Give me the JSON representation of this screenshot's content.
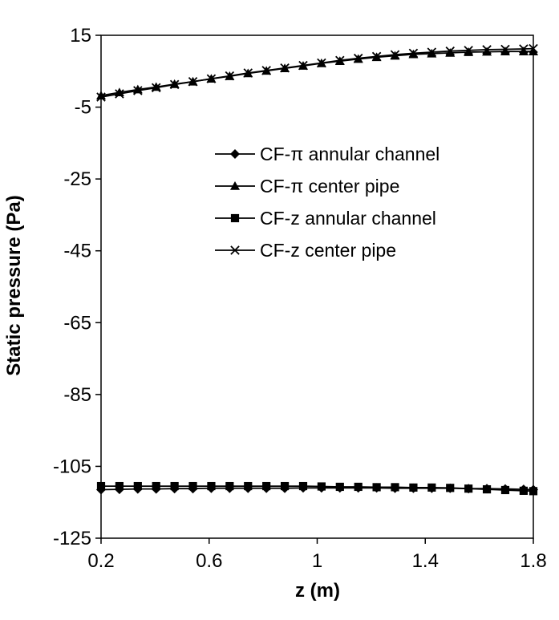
{
  "chart_data": {
    "type": "line",
    "title": "",
    "xlabel": "z (m)",
    "ylabel": "Static pressure (Pa)",
    "xlim": [
      0.2,
      1.8
    ],
    "ylim": [
      -125,
      15
    ],
    "xticks": [
      0.2,
      0.6,
      1,
      1.4,
      1.8
    ],
    "xtick_labels": [
      "0.2",
      "0.6",
      "1",
      "1.4",
      "1.8"
    ],
    "yticks": [
      15,
      -5,
      -25,
      -45,
      -65,
      -85,
      -105,
      -125
    ],
    "ytick_labels": [
      "15",
      "-5",
      "-25",
      "-45",
      "-65",
      "-85",
      "-105",
      "-125"
    ],
    "grid": false,
    "legend_position": "center",
    "x": [
      0.2,
      0.268,
      0.336,
      0.404,
      0.472,
      0.54,
      0.608,
      0.676,
      0.744,
      0.812,
      0.88,
      0.948,
      1.016,
      1.084,
      1.152,
      1.22,
      1.288,
      1.356,
      1.424,
      1.492,
      1.56,
      1.628,
      1.696,
      1.764,
      1.8
    ],
    "series": [
      {
        "name": "CF-π annular channel",
        "marker": "diamond",
        "values": [
          -111.5,
          -111.4,
          -111.3,
          -111.3,
          -111.2,
          -111.2,
          -111.1,
          -111.1,
          -111.1,
          -111.1,
          -111.1,
          -111.0,
          -111.0,
          -111.0,
          -111.0,
          -111.0,
          -111.1,
          -111.1,
          -111.1,
          -111.1,
          -111.2,
          -111.2,
          -111.3,
          -111.4,
          -111.5
        ]
      },
      {
        "name": "CF-π center pipe",
        "marker": "triangle",
        "values": [
          -1.8,
          -0.9,
          -0.1,
          0.6,
          1.4,
          2.1,
          2.9,
          3.6,
          4.4,
          5.1,
          5.8,
          6.5,
          7.2,
          7.8,
          8.4,
          8.9,
          9.3,
          9.7,
          9.9,
          10.1,
          10.3,
          10.4,
          10.5,
          10.5,
          10.5
        ]
      },
      {
        "name": "CF-z annular channel",
        "marker": "square",
        "values": [
          -110.5,
          -110.5,
          -110.5,
          -110.5,
          -110.5,
          -110.5,
          -110.5,
          -110.5,
          -110.5,
          -110.5,
          -110.5,
          -110.5,
          -110.6,
          -110.7,
          -110.7,
          -110.8,
          -110.8,
          -110.9,
          -110.9,
          -111.0,
          -111.2,
          -111.4,
          -111.6,
          -111.8,
          -111.9
        ]
      },
      {
        "name": "CF-z center pipe",
        "marker": "x",
        "values": [
          -2.2,
          -1.3,
          -0.4,
          0.4,
          1.3,
          2.1,
          2.9,
          3.7,
          4.5,
          5.2,
          5.9,
          6.6,
          7.3,
          8.0,
          8.6,
          9.1,
          9.6,
          10.0,
          10.3,
          10.6,
          10.8,
          11.0,
          11.1,
          11.2,
          11.3
        ]
      }
    ]
  }
}
